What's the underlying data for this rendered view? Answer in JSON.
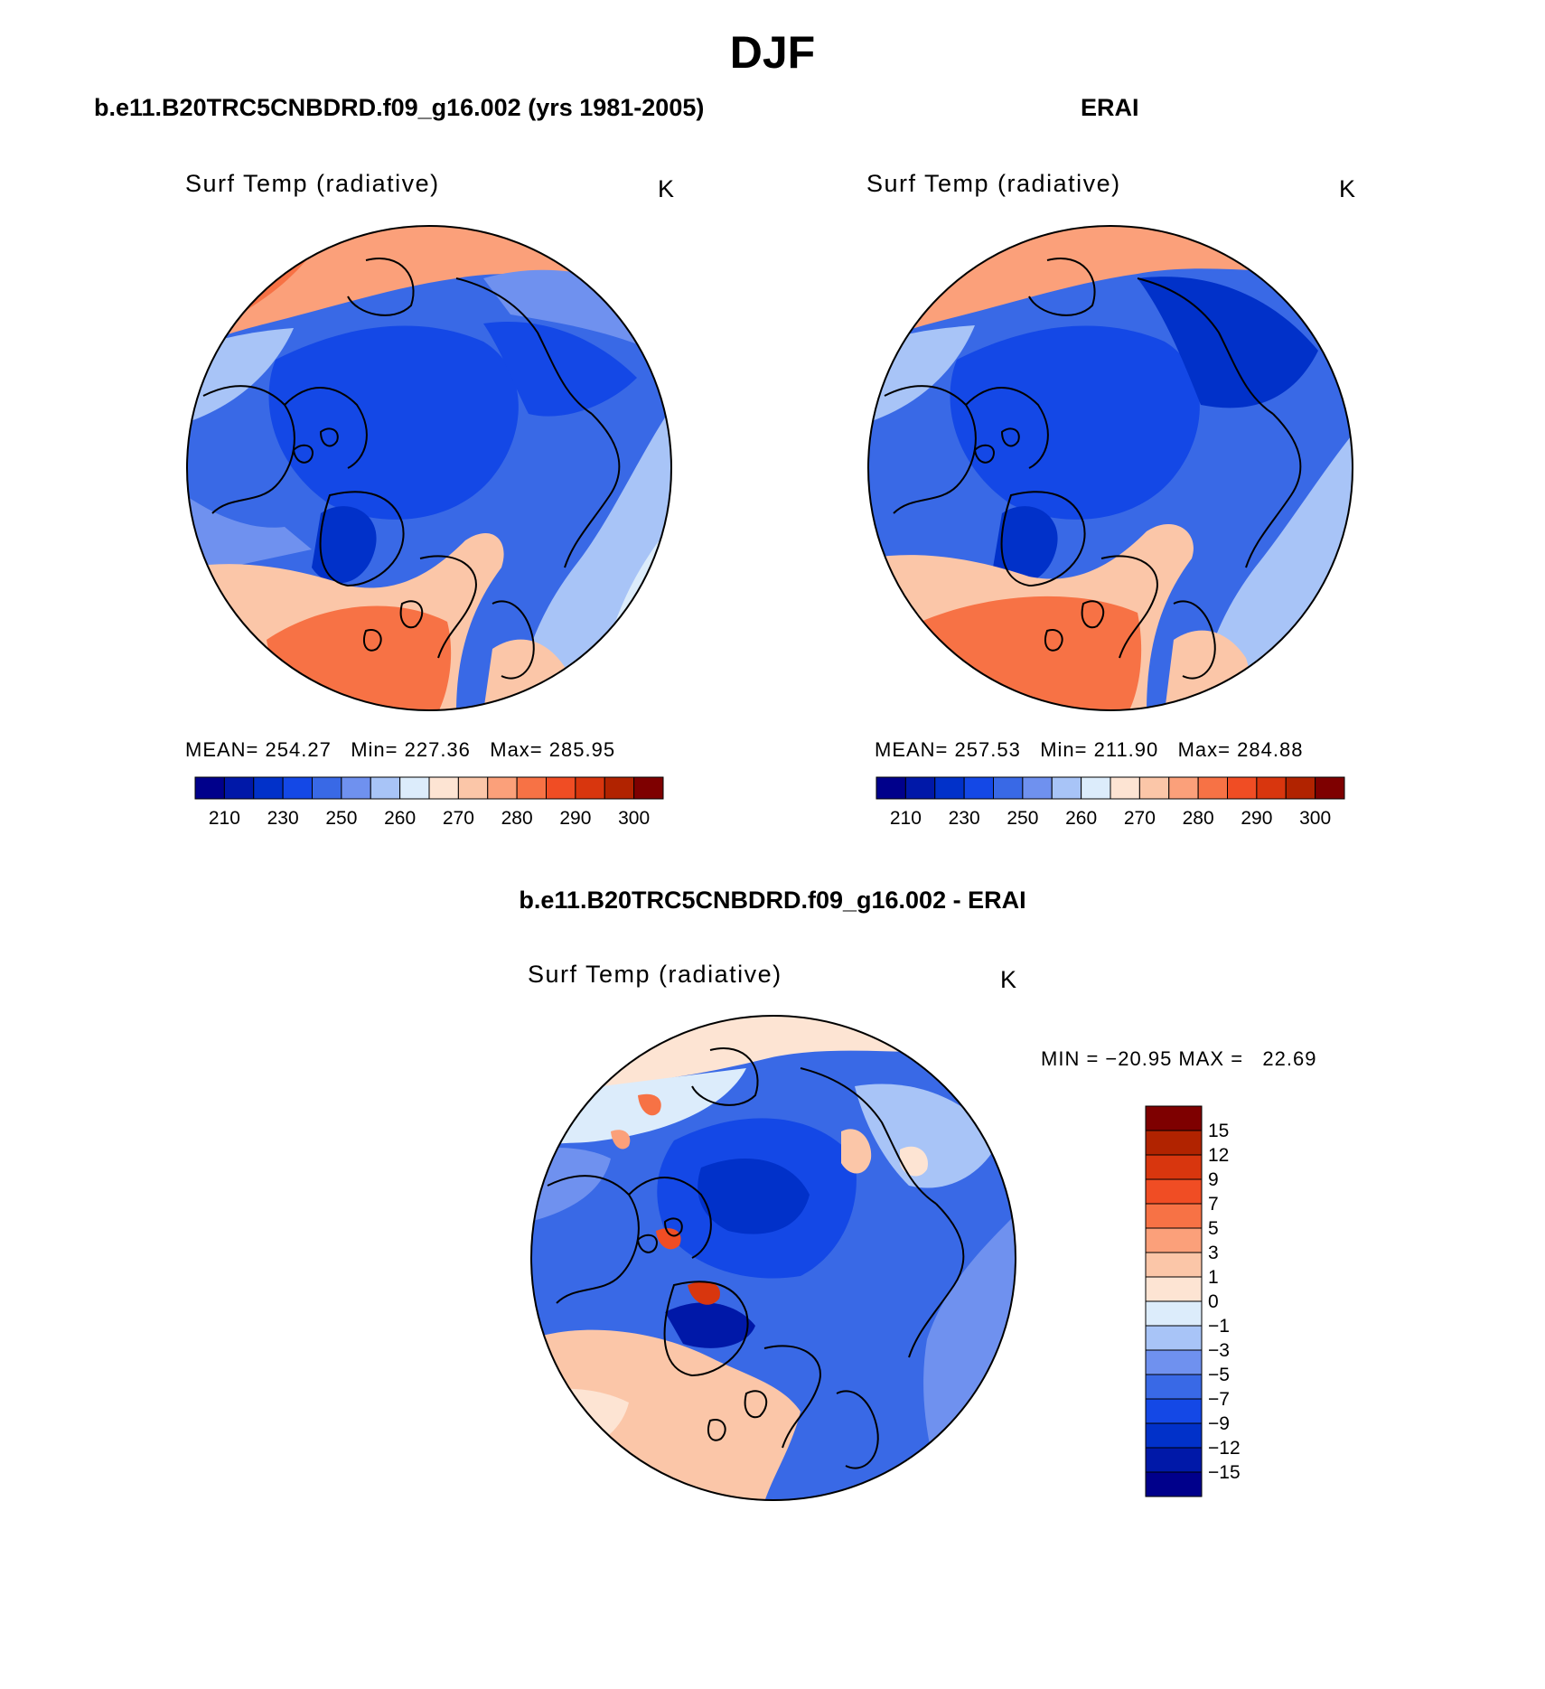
{
  "page": {
    "title": "DJF"
  },
  "panels": [
    {
      "id": "model",
      "title": "b.e11.B20TRC5CNBDRD.f09_g16.002 (yrs 1981-2005)",
      "variable": "Surf Temp (radiative)",
      "units": "K",
      "stats": {
        "mean_label": "MEAN=",
        "mean": "254.27",
        "min_label": "Min=",
        "min": "227.36",
        "max_label": "Max=",
        "max": "285.95"
      },
      "colorbar": {
        "colors": [
          "#00008b",
          "#0018a8",
          "#0131c9",
          "#1448e6",
          "#3969e6",
          "#6f91ef",
          "#a8c4f7",
          "#dcecfb",
          "#fde4d3",
          "#fbc6a8",
          "#fba07a",
          "#f77245",
          "#f04d24",
          "#d8360e",
          "#b12300",
          "#7e0000"
        ],
        "labels": [
          "210",
          "230",
          "250",
          "260",
          "270",
          "280",
          "290",
          "300"
        ]
      }
    },
    {
      "id": "obs",
      "title": "ERAI",
      "variable": "Surf Temp (radiative)",
      "units": "K",
      "stats": {
        "mean_label": "MEAN=",
        "mean": "257.53",
        "min_label": "Min=",
        "min": "211.90",
        "max_label": "Max=",
        "max": "284.88"
      },
      "colorbar": {
        "colors": [
          "#00008b",
          "#0018a8",
          "#0131c9",
          "#1448e6",
          "#3969e6",
          "#6f91ef",
          "#a8c4f7",
          "#dcecfb",
          "#fde4d3",
          "#fbc6a8",
          "#fba07a",
          "#f77245",
          "#f04d24",
          "#d8360e",
          "#b12300",
          "#7e0000"
        ],
        "labels": [
          "210",
          "230",
          "250",
          "260",
          "270",
          "280",
          "290",
          "300"
        ]
      }
    },
    {
      "id": "diff",
      "title": "b.e11.B20TRC5CNBDRD.f09_g16.002 - ERAI",
      "variable": "Surf Temp (radiative)",
      "units": "K",
      "stats_text": "MIN = −20.95 MAX =   22.69",
      "colorbar": {
        "colors_top_to_bottom": [
          "#7e0000",
          "#b12300",
          "#d8360e",
          "#f04d24",
          "#f77245",
          "#fba07a",
          "#fbc6a8",
          "#fde4d3",
          "#dcecfb",
          "#a8c4f7",
          "#6f91ef",
          "#3969e6",
          "#1448e6",
          "#0131c9",
          "#0018a8",
          "#00008b"
        ],
        "labels_top_to_bottom": [
          "15",
          "12",
          "9",
          "7",
          "5",
          "3",
          "1",
          "0",
          "−1",
          "−3",
          "−5",
          "−7",
          "−9",
          "−12",
          "−15"
        ]
      }
    }
  ]
}
